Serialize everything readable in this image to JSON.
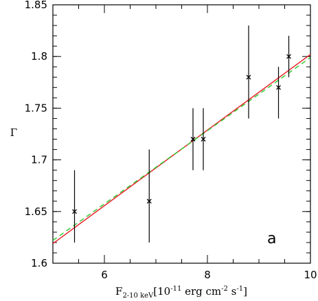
{
  "chart_data": {
    "type": "scatter",
    "xlabel_symbol": "F",
    "xlabel_subscript": "2-10 keV",
    "xlabel_bracket_open": "[10",
    "xlabel_exp1": "-11",
    "xlabel_units1": " erg cm",
    "xlabel_exp2": "-2",
    "xlabel_units2": " s",
    "xlabel_exp3": "-1",
    "xlabel_bracket_close": "]",
    "ylabel": "Γ",
    "panel_label": "a",
    "xlim": [
      5.0,
      10.0
    ],
    "ylim": [
      1.6,
      1.85
    ],
    "xticks": [
      6,
      8,
      10
    ],
    "xtick_labels": [
      "6",
      "8",
      "10"
    ],
    "xminor_step": 0.5,
    "yticks": [
      1.6,
      1.65,
      1.7,
      1.75,
      1.8,
      1.85
    ],
    "ytick_labels": [
      "1.6",
      "1.65",
      "1.7",
      "1.75",
      "1.8",
      "1.85"
    ],
    "yminor_step": 0.01,
    "points": [
      {
        "x": 5.42,
        "y": 1.65,
        "yerr_low": 1.62,
        "yerr_high": 1.69
      },
      {
        "x": 6.87,
        "y": 1.66,
        "yerr_low": 1.62,
        "yerr_high": 1.71
      },
      {
        "x": 7.72,
        "y": 1.72,
        "yerr_low": 1.69,
        "yerr_high": 1.75
      },
      {
        "x": 7.92,
        "y": 1.72,
        "yerr_low": 1.69,
        "yerr_high": 1.75
      },
      {
        "x": 8.8,
        "y": 1.78,
        "yerr_low": 1.74,
        "yerr_high": 1.83
      },
      {
        "x": 9.38,
        "y": 1.77,
        "yerr_low": 1.74,
        "yerr_high": 1.79
      },
      {
        "x": 9.58,
        "y": 1.8,
        "yerr_low": 1.78,
        "yerr_high": 1.82
      }
    ],
    "fits": [
      {
        "style": "solid",
        "color": "#e8232a",
        "x": [
          5.0,
          10.0
        ],
        "y": [
          1.619,
          1.802
        ]
      },
      {
        "style": "dashed",
        "color": "#33cc33",
        "x": [
          5.0,
          10.0
        ],
        "y": [
          1.622,
          1.799
        ]
      }
    ]
  }
}
